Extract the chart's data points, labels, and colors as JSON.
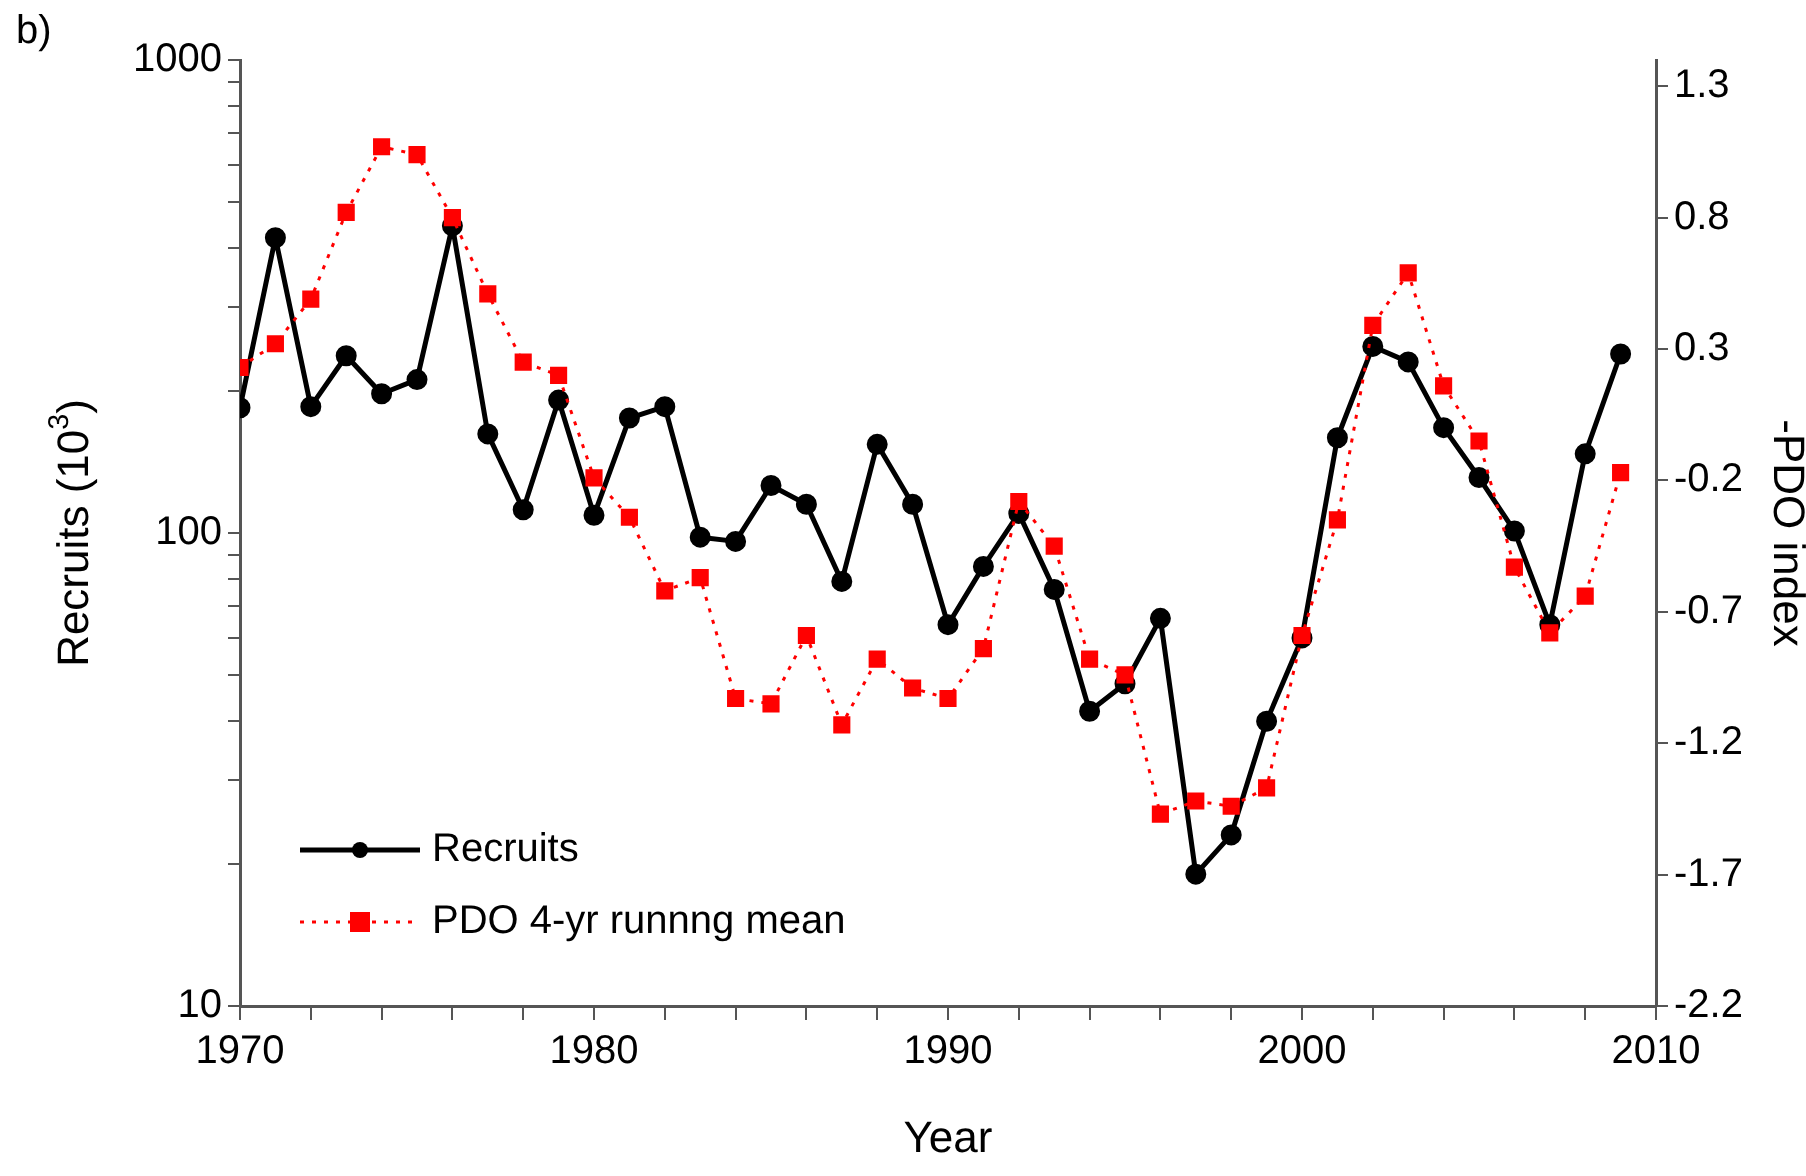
{
  "chart_data": {
    "type": "line",
    "xlabel": "Year",
    "ylabel": "Recruits (10$^{3}$)",
    "y2label": "-PDO index",
    "annotations": [
      "b)"
    ],
    "x": [
      1970,
      1971,
      1972,
      1973,
      1974,
      1975,
      1976,
      1977,
      1978,
      1979,
      1980,
      1981,
      1982,
      1983,
      1984,
      1985,
      1986,
      1987,
      1988,
      1989,
      1990,
      1991,
      1992,
      1993,
      1994,
      1995,
      1996,
      1997,
      1998,
      1999,
      2000,
      2001,
      2002,
      2003,
      2004,
      2005,
      2006,
      2007,
      2008,
      2009
    ],
    "series": [
      {
        "name": "Recruits",
        "color": "#000000",
        "marker": "circle",
        "line_style": "solid",
        "values": [
          184,
          421,
          185,
          237,
          197,
          211,
          446,
          162,
          112,
          191,
          109,
          175,
          185,
          98,
          96,
          126,
          115,
          79,
          154,
          115,
          64,
          85,
          110,
          76,
          42,
          48,
          66,
          19,
          23,
          40,
          60,
          159,
          248,
          230,
          167,
          131,
          101,
          64,
          147,
          239
        ]
      },
      {
        "name": "PDO 4-yr runnng mean",
        "color": "#ff0000",
        "marker": "square",
        "line_style": "dotted",
        "axis": "y2",
        "values": [
          0.23,
          0.32,
          0.49,
          0.82,
          1.07,
          1.04,
          0.8,
          0.51,
          0.25,
          0.2,
          -0.19,
          -0.34,
          -0.62,
          -0.57,
          -1.03,
          -1.05,
          -0.79,
          -1.13,
          -0.88,
          -0.99,
          -1.03,
          -0.84,
          -0.28,
          -0.45,
          -0.88,
          -0.94,
          -1.47,
          -1.42,
          -1.44,
          -1.37,
          -0.79,
          -0.35,
          0.39,
          0.59,
          0.16,
          -0.05,
          -0.53,
          -0.78,
          -0.64,
          -0.17
        ]
      }
    ],
    "xlim": [
      1970,
      2010
    ],
    "xticks": [
      1970,
      {
        "value": 1972,
        "label": null
      },
      {
        "value": 1974,
        "label": null
      },
      {
        "value": 1976,
        "label": null
      },
      {
        "value": 1978,
        "label": null
      },
      1980,
      {
        "value": 1982,
        "label": null
      },
      {
        "value": 1984,
        "label": null
      },
      {
        "value": 1986,
        "label": null
      },
      {
        "value": 1988,
        "label": null
      },
      1990,
      {
        "value": 1992,
        "label": null
      },
      {
        "value": 1994,
        "label": null
      },
      {
        "value": 1996,
        "label": null
      },
      {
        "value": 1998,
        "label": null
      },
      2000,
      {
        "value": 2002,
        "label": null
      },
      {
        "value": 2004,
        "label": null
      },
      {
        "value": 2006,
        "label": null
      },
      {
        "value": 2008,
        "label": null
      },
      2010
    ],
    "log": "y",
    "ylim": [
      10,
      1000
    ],
    "yticks": [
      10,
      {
        "value": 20,
        "label": null
      },
      {
        "value": 30,
        "label": null
      },
      {
        "value": 40,
        "label": null
      },
      {
        "value": 50,
        "label": null
      },
      {
        "value": 60,
        "label": null
      },
      {
        "value": 70,
        "label": null
      },
      {
        "value": 80,
        "label": null
      },
      {
        "value": 90,
        "label": null
      },
      100,
      {
        "value": 200,
        "label": null
      },
      {
        "value": 300,
        "label": null
      },
      {
        "value": 400,
        "label": null
      },
      {
        "value": 500,
        "label": null
      },
      {
        "value": 600,
        "label": null
      },
      {
        "value": 700,
        "label": null
      },
      {
        "value": 800,
        "label": null
      },
      {
        "value": 900,
        "label": null
      },
      1000
    ],
    "y2lim": [
      -2.2,
      1.4
    ],
    "y2ticks": [
      -2.2,
      -1.7,
      -1.2,
      -0.7,
      -0.2,
      0.3,
      0.8,
      1.3
    ],
    "grid": false,
    "legend": "bottom left"
  }
}
